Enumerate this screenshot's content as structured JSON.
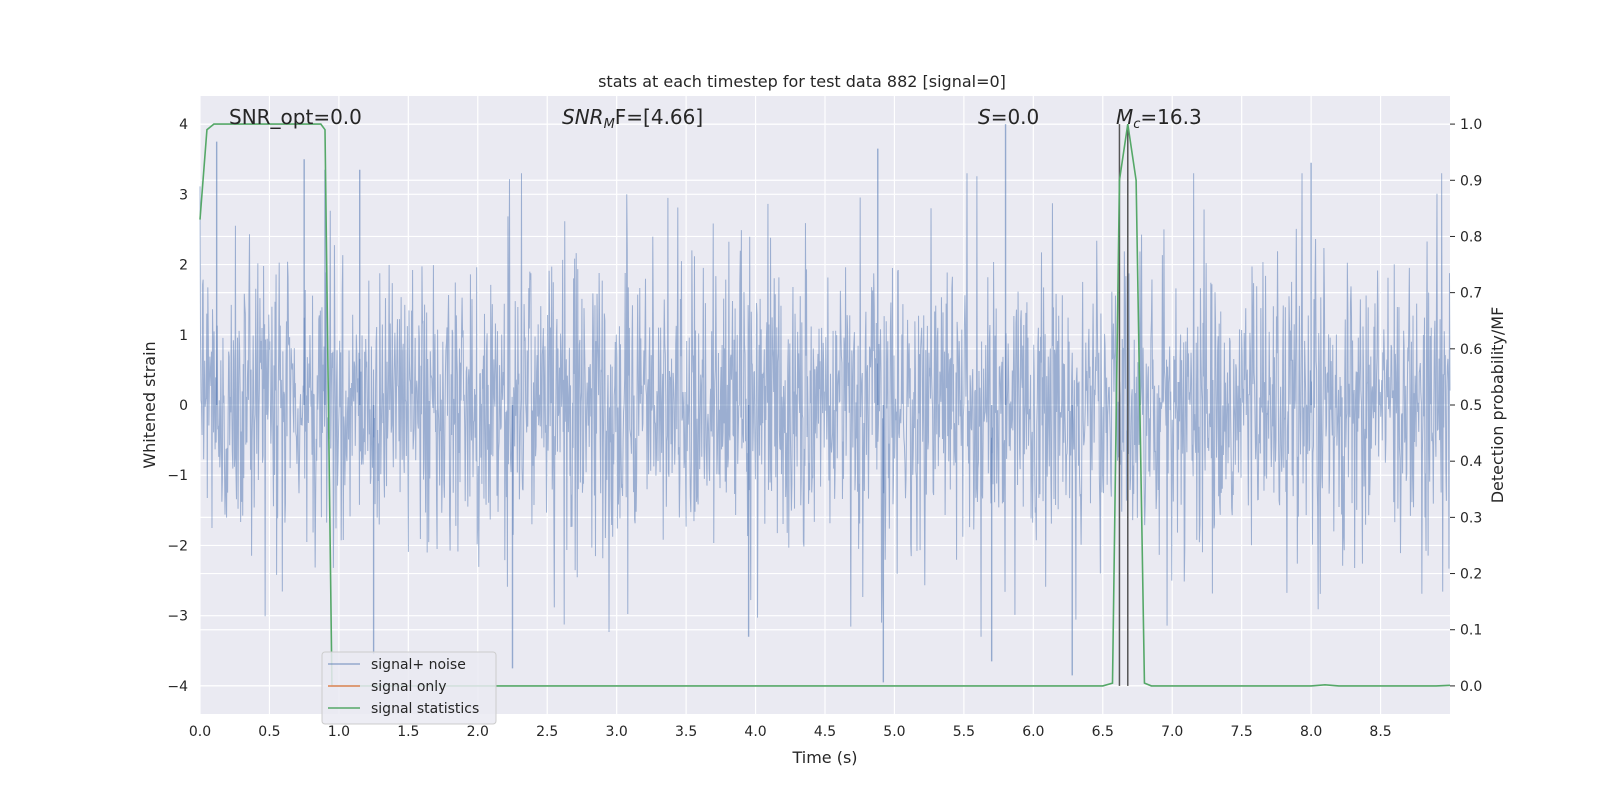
{
  "chart_data": {
    "type": "line",
    "title": "stats at each timestep for test data 882 [signal=0]",
    "xlabel": "Time (s)",
    "ylabel": "Whitened strain",
    "ylabel_right": "Detection probability/MF",
    "xlim": [
      0.0,
      9.0
    ],
    "ylim": [
      -4.4,
      4.4
    ],
    "ylim_right": [
      -0.05,
      1.05
    ],
    "x_ticks": [
      "0.0",
      "0.5",
      "1.0",
      "1.5",
      "2.0",
      "2.5",
      "3.0",
      "3.5",
      "4.0",
      "4.5",
      "5.0",
      "5.5",
      "6.0",
      "6.5",
      "7.0",
      "7.5",
      "8.0",
      "8.5"
    ],
    "y_ticks": [
      "−4",
      "−3",
      "−2",
      "−1",
      "0",
      "1",
      "2",
      "3",
      "4"
    ],
    "y_ticks_right": [
      "0.0",
      "0.1",
      "0.2",
      "0.3",
      "0.4",
      "0.5",
      "0.6",
      "0.7",
      "0.8",
      "0.9",
      "1.0"
    ],
    "grid": true,
    "legend_position": "lower-left",
    "colors": {
      "noise": "#4c72b0",
      "signal": "#dd8452",
      "stats": "#55a868",
      "background": "#eaeaf2",
      "vline": "#555555"
    },
    "annotations": {
      "snr_opt": "SNR_opt=0.0",
      "snr_mf_base": "SNR",
      "snr_mf_sub": "M",
      "snr_mf_rest": "F=[4.66]",
      "s_label": "S",
      "s_value": "=0.0",
      "mc_base": "M",
      "mc_sub": "c",
      "mc_value": "=16.3"
    },
    "vlines_x": [
      6.62,
      6.68
    ],
    "series": [
      {
        "name": "signal+ noise",
        "axis": "left",
        "description_stats": {
          "envelope_typical": 1.6,
          "peak_max": 4.0,
          "peak_min": -4.0
        },
        "peaks": [
          {
            "x": 0.12,
            "y": 3.75
          },
          {
            "x": 0.75,
            "y": 3.5
          },
          {
            "x": 0.9,
            "y": 3.35
          },
          {
            "x": 1.15,
            "y": 3.35
          },
          {
            "x": 4.88,
            "y": 3.65
          },
          {
            "x": 5.8,
            "y": 4.0
          },
          {
            "x": 8.0,
            "y": 3.45
          },
          {
            "x": 6.68,
            "y": 3.1
          },
          {
            "x": 1.25,
            "y": -3.55
          },
          {
            "x": 2.25,
            "y": -3.75
          },
          {
            "x": 4.92,
            "y": -3.95
          },
          {
            "x": 6.28,
            "y": -3.85
          },
          {
            "x": 5.7,
            "y": -3.65
          },
          {
            "x": 3.95,
            "y": -3.3
          }
        ]
      },
      {
        "name": "signal only",
        "axis": "left",
        "x": [],
        "y": []
      },
      {
        "name": "signal statistics",
        "axis": "right",
        "x": [
          0.0,
          0.05,
          0.1,
          0.2,
          0.4,
          0.6,
          0.8,
          0.87,
          0.9,
          0.95,
          1.0,
          2.0,
          3.0,
          4.0,
          5.0,
          6.0,
          6.5,
          6.57,
          6.62,
          6.68,
          6.74,
          6.8,
          6.85,
          7.0,
          7.5,
          8.0,
          8.1,
          8.2,
          8.5,
          8.9,
          9.0
        ],
        "y": [
          0.83,
          0.99,
          1.0,
          1.0,
          1.0,
          1.0,
          1.0,
          1.0,
          0.99,
          0.0,
          0.0,
          0.0,
          0.0,
          0.0,
          0.0,
          0.0,
          0.0,
          0.005,
          0.9,
          1.0,
          0.9,
          0.005,
          0.0,
          0.0,
          0.0,
          0.0,
          0.002,
          0.0,
          0.0,
          0.0,
          0.001
        ]
      }
    ]
  }
}
